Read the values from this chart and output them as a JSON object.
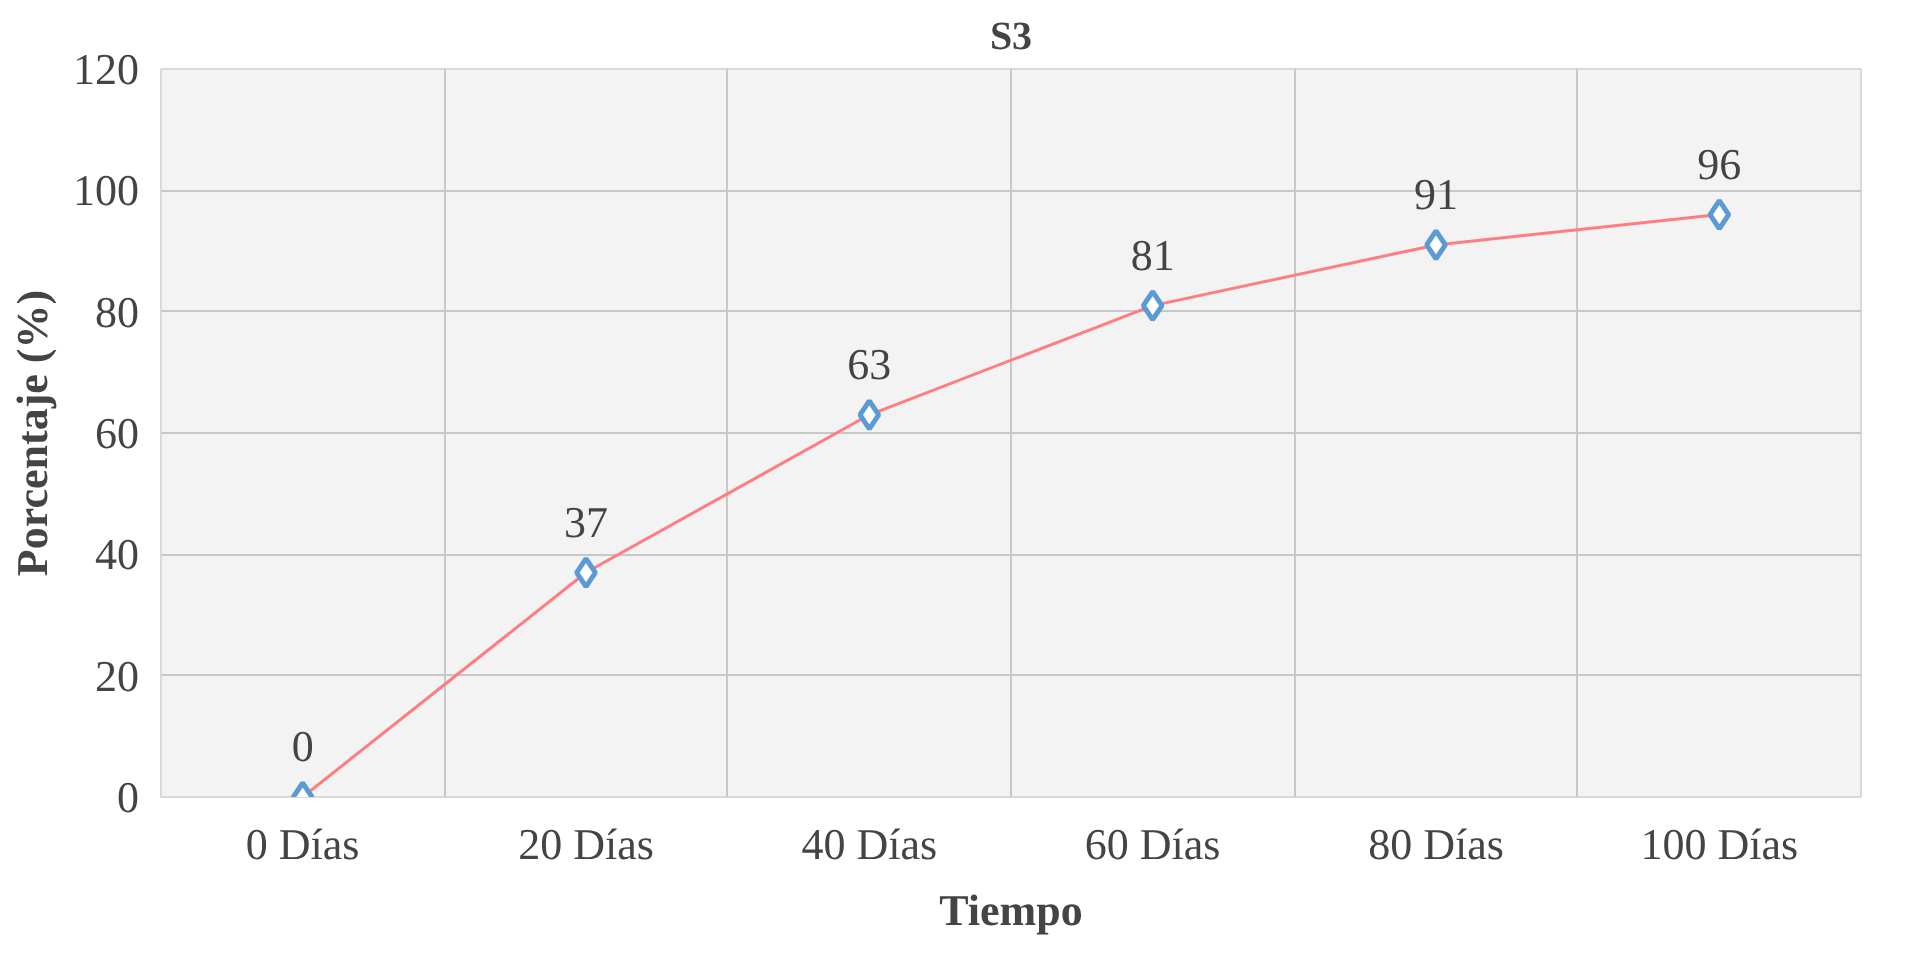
{
  "chart_data": {
    "type": "line",
    "title": "S3",
    "xlabel": "Tiempo",
    "ylabel": "Porcentaje (%)",
    "categories": [
      "0 Días",
      "20 Días",
      "40 Días",
      "60 Días",
      "80 Días",
      "100 Días"
    ],
    "series": [
      {
        "color": "#ff7c80",
        "values": [
          0,
          37,
          63,
          81,
          91,
          96
        ]
      }
    ],
    "ylim": [
      0,
      120
    ],
    "yticks": [
      0,
      20,
      40,
      60,
      80,
      100,
      120
    ],
    "grid": true,
    "marker": "diamond",
    "data_labels": true
  }
}
